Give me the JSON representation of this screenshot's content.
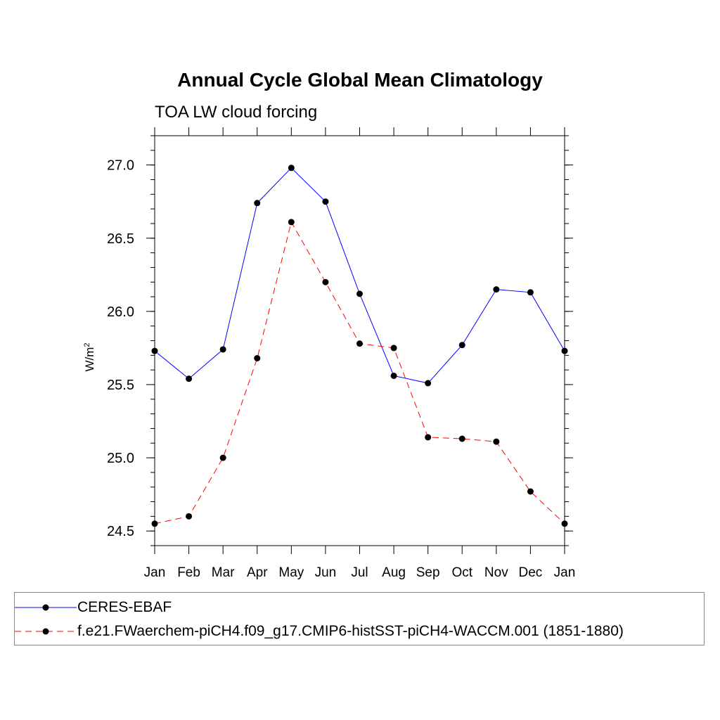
{
  "chart_data": {
    "type": "line",
    "title": "Annual Cycle Global Mean Climatology",
    "subtitle": "TOA LW cloud forcing",
    "xlabel": "",
    "ylabel": "W/m",
    "ylabel_superscript": "2",
    "categories": [
      "Jan",
      "Feb",
      "Mar",
      "Apr",
      "May",
      "Jun",
      "Jul",
      "Aug",
      "Sep",
      "Oct",
      "Nov",
      "Dec",
      "Jan"
    ],
    "ylim": [
      24.4,
      27.2
    ],
    "yticks": [
      "24.5",
      "25.0",
      "25.5",
      "26.0",
      "26.5",
      "27.0"
    ],
    "series": [
      {
        "name": "CERES-EBAF",
        "color": "#0000ff",
        "dash": "solid",
        "values": [
          25.73,
          25.54,
          25.74,
          26.74,
          26.98,
          26.75,
          26.12,
          25.56,
          25.51,
          25.77,
          26.15,
          26.13,
          25.73
        ]
      },
      {
        "name": "f.e21.FWaerchem-piCH4.f09_g17.CMIP6-histSST-piCH4-WACCM.001 (1851-1880)",
        "color": "#ff0000",
        "dash": "dashed",
        "values": [
          24.55,
          24.6,
          25.0,
          25.68,
          26.61,
          26.2,
          25.78,
          25.75,
          25.14,
          25.13,
          25.11,
          24.77,
          24.55
        ]
      }
    ]
  }
}
